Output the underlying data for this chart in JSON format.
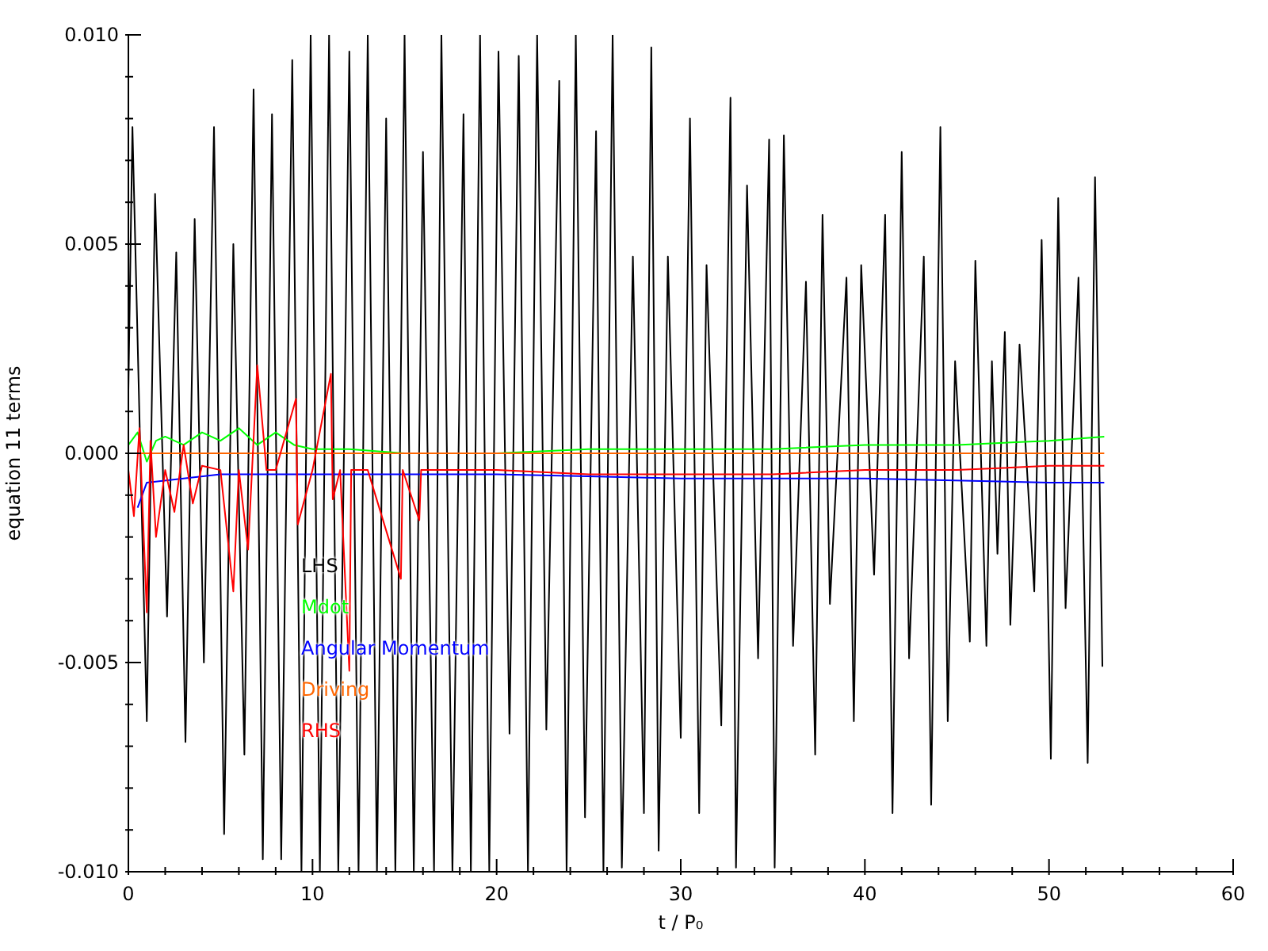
{
  "chart_data": {
    "type": "line",
    "xlabel": "t / P₀",
    "ylabel": "equation 11 terms",
    "xlim": [
      0,
      60
    ],
    "xticks": [
      0,
      {
        "value": 2,
        "label": null
      },
      {
        "value": 4,
        "label": null
      },
      {
        "value": 6,
        "label": null
      },
      {
        "value": 8,
        "label": null
      },
      10,
      {
        "value": 12,
        "label": null
      },
      {
        "value": 14,
        "label": null
      },
      {
        "value": 16,
        "label": null
      },
      {
        "value": 18,
        "label": null
      },
      20,
      {
        "value": 22,
        "label": null
      },
      {
        "value": 24,
        "label": null
      },
      {
        "value": 26,
        "label": null
      },
      {
        "value": 28,
        "label": null
      },
      30,
      {
        "value": 32,
        "label": null
      },
      {
        "value": 34,
        "label": null
      },
      {
        "value": 36,
        "label": null
      },
      {
        "value": 38,
        "label": null
      },
      40,
      {
        "value": 42,
        "label": null
      },
      {
        "value": 44,
        "label": null
      },
      {
        "value": 46,
        "label": null
      },
      {
        "value": 48,
        "label": null
      },
      50,
      {
        "value": 52,
        "label": null
      },
      {
        "value": 54,
        "label": null
      },
      {
        "value": 56,
        "label": null
      },
      {
        "value": 58,
        "label": null
      },
      60
    ],
    "ylim": [
      -0.01,
      0.01
    ],
    "yticks": [
      {
        "value": -0.01,
        "label": "-0.010"
      },
      {
        "value": -0.009,
        "label": null
      },
      {
        "value": -0.008,
        "label": null
      },
      {
        "value": -0.007,
        "label": null
      },
      {
        "value": -0.006,
        "label": null
      },
      {
        "value": -0.005,
        "label": "-0.005"
      },
      {
        "value": -0.004,
        "label": null
      },
      {
        "value": -0.003,
        "label": null
      },
      {
        "value": -0.002,
        "label": null
      },
      {
        "value": -0.001,
        "label": null
      },
      {
        "value": 0,
        "label": "0.000"
      },
      {
        "value": 0.001,
        "label": null
      },
      {
        "value": 0.002,
        "label": null
      },
      {
        "value": 0.003,
        "label": null
      },
      {
        "value": 0.004,
        "label": null
      },
      {
        "value": 0.005,
        "label": "0.005"
      },
      {
        "value": 0.006,
        "label": null
      },
      {
        "value": 0.007,
        "label": null
      },
      {
        "value": 0.008,
        "label": null
      },
      {
        "value": 0.009,
        "label": null
      },
      {
        "value": 0.01,
        "label": "0.010"
      }
    ],
    "legend": "left",
    "marker": "none",
    "line_style": "solid",
    "series": [
      {
        "name": "LHS",
        "color": "#000000",
        "x": [
          0,
          0.22,
          1.0,
          1.45,
          2.1,
          2.6,
          3.1,
          3.6,
          4.1,
          4.65,
          5.2,
          5.7,
          6.3,
          6.8,
          7.3,
          7.8,
          8.3,
          8.9,
          9.4,
          9.9,
          10.4,
          10.9,
          11.4,
          12.0,
          12.5,
          13.0,
          13.5,
          14.0,
          14.5,
          15.0,
          15.5,
          16.0,
          16.6,
          17.0,
          17.6,
          18.2,
          18.6,
          19.1,
          19.6,
          20.1,
          20.7,
          21.2,
          21.7,
          22.2,
          22.7,
          23.4,
          23.8,
          24.3,
          24.8,
          25.4,
          25.8,
          26.3,
          26.8,
          27.4,
          28.0,
          28.4,
          28.8,
          29.3,
          30.0,
          30.5,
          31.0,
          31.4,
          32.2,
          32.7,
          33.0,
          33.6,
          34.2,
          34.8,
          35.1,
          35.6,
          36.1,
          36.8,
          37.3,
          37.7,
          38.1,
          39.0,
          39.4,
          39.8,
          40.5,
          41.1,
          41.5,
          42.0,
          42.4,
          43.2,
          43.6,
          44.1,
          44.5,
          44.9,
          45.7,
          46.0,
          46.6,
          46.9,
          47.2,
          47.6,
          47.9,
          48.4,
          49.2,
          49.6,
          50.1,
          50.5,
          50.9,
          51.6,
          52.1,
          52.5,
          52.9
        ],
        "values": [
          0.0015,
          0.0078,
          -0.0064,
          0.0062,
          -0.0039,
          0.0048,
          -0.0069,
          0.0056,
          -0.005,
          0.0078,
          -0.0091,
          0.005,
          -0.0072,
          0.0087,
          -0.0097,
          0.0081,
          -0.0097,
          0.0094,
          -0.01,
          0.01,
          -0.01,
          0.01,
          -0.01,
          0.0096,
          -0.01,
          0.01,
          -0.01,
          0.008,
          -0.01,
          0.01,
          -0.01,
          0.0072,
          -0.01,
          0.01,
          -0.01,
          0.0081,
          -0.01,
          0.01,
          -0.01,
          0.0096,
          -0.0067,
          0.0095,
          -0.01,
          0.01,
          -0.0066,
          0.0089,
          -0.01,
          0.01,
          -0.0087,
          0.0077,
          -0.01,
          0.01,
          -0.0099,
          0.0047,
          -0.0086,
          0.0097,
          -0.0095,
          0.0047,
          -0.0068,
          0.008,
          -0.0086,
          0.0045,
          -0.0065,
          0.0085,
          -0.0099,
          0.0064,
          -0.0049,
          0.0075,
          -0.0099,
          0.0076,
          -0.0046,
          0.0041,
          -0.0072,
          0.0057,
          -0.0036,
          0.0042,
          -0.0064,
          0.0045,
          -0.0029,
          0.0057,
          -0.0086,
          0.0072,
          -0.0049,
          0.0047,
          -0.0084,
          0.0078,
          -0.0064,
          0.0022,
          -0.0045,
          0.0046,
          -0.0046,
          0.0022,
          -0.0024,
          0.0029,
          -0.0041,
          0.0026,
          -0.0033,
          0.0051,
          -0.0073,
          0.0061,
          -0.0037,
          0.0042,
          -0.0074,
          0.0066,
          -0.0051
        ]
      },
      {
        "name": "Mdot",
        "color": "#00ff00",
        "x": [
          0,
          0.5,
          1,
          1.5,
          2,
          3,
          4,
          5,
          6,
          7,
          8,
          9,
          10,
          12,
          15,
          20,
          25,
          30,
          35,
          40,
          45,
          50,
          53
        ],
        "values": [
          0.0002,
          0.0005,
          -0.0002,
          0.0003,
          0.0004,
          0.0002,
          0.0005,
          0.0003,
          0.0006,
          0.0002,
          0.0005,
          0.0002,
          0.0001,
          0.0001,
          0.0,
          0.0,
          0.0001,
          0.0001,
          0.0001,
          0.0002,
          0.0002,
          0.0003,
          0.0004
        ]
      },
      {
        "name": "Angular Momentum",
        "color": "#0000ff",
        "x": [
          0.5,
          1,
          5,
          10,
          20,
          30,
          40,
          50,
          53
        ],
        "values": [
          -0.0013,
          -0.0007,
          -0.0005,
          -0.0005,
          -0.0005,
          -0.0006,
          -0.0006,
          -0.0007,
          -0.0007
        ]
      },
      {
        "name": "Driving",
        "color": "#ff6600",
        "x": [
          0,
          53
        ],
        "values": [
          0,
          0
        ]
      },
      {
        "name": "RHS",
        "color": "#ff0000",
        "x": [
          0,
          0.3,
          0.6,
          1.0,
          1.2,
          1.5,
          2.0,
          2.5,
          3.0,
          3.5,
          4.0,
          5.0,
          5.7,
          6.0,
          6.5,
          7.0,
          7.5,
          8.0,
          9.1,
          9.2,
          10.0,
          11.0,
          11.1,
          11.5,
          12.0,
          12.1,
          13,
          14.8,
          14.9,
          15.8,
          15.9,
          17,
          20,
          25,
          30,
          35,
          40,
          45,
          50,
          53
        ],
        "values": [
          -0.0004,
          -0.0015,
          0.0006,
          -0.0038,
          0.0003,
          -0.002,
          -0.0004,
          -0.0014,
          0.0002,
          -0.0012,
          -0.0003,
          -0.0004,
          -0.0033,
          -0.0004,
          -0.0023,
          0.0021,
          -0.0004,
          -0.0004,
          0.0013,
          -0.0017,
          -0.0004,
          0.0019,
          -0.0011,
          -0.0004,
          -0.0052,
          -0.0004,
          -0.0004,
          -0.003,
          -0.0004,
          -0.0016,
          -0.0004,
          -0.0004,
          -0.0004,
          -0.0005,
          -0.0005,
          -0.0005,
          -0.0004,
          -0.0004,
          -0.0003,
          -0.0003
        ]
      }
    ]
  }
}
